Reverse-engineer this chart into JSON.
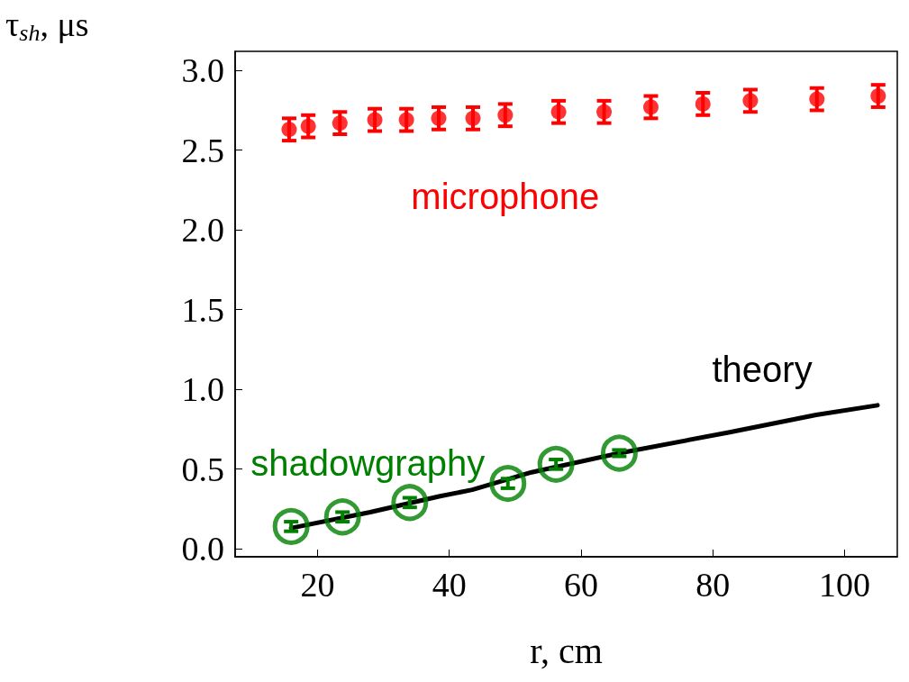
{
  "chart_data": {
    "type": "scatter",
    "xlabel": "r, cm",
    "ylabel": "τ$_{sh}$, μs",
    "xlim": [
      7.5,
      108
    ],
    "xticks": [
      20,
      40,
      60,
      80,
      100
    ],
    "ylim": [
      -0.05,
      3.12
    ],
    "yticks": [
      {
        "value": 0,
        "label": "0.0"
      },
      {
        "value": 0.5,
        "label": "0.5"
      },
      {
        "value": 1,
        "label": "1.0"
      },
      {
        "value": 1.5,
        "label": "1.5"
      },
      {
        "value": 2,
        "label": "2.0"
      },
      {
        "value": 2.5,
        "label": "2.5"
      },
      {
        "value": 3,
        "label": "3.0"
      }
    ],
    "grid": false,
    "legend": false,
    "marker": "circle",
    "series": [
      {
        "name": "microphone",
        "color": "#ff0000",
        "x": [
          15.7,
          18.6,
          23.4,
          28.7,
          33.5,
          38.4,
          43.6,
          48.5,
          56.6,
          63.5,
          70.6,
          78.5,
          85.7,
          95.8,
          105.1
        ],
        "values": [
          2.63,
          2.65,
          2.67,
          2.69,
          2.69,
          2.7,
          2.7,
          2.72,
          2.74,
          2.74,
          2.77,
          2.79,
          2.81,
          2.82,
          2.84
        ],
        "errors": [
          0.07,
          0.07,
          0.07,
          0.07,
          0.07,
          0.07,
          0.07,
          0.07,
          0.07,
          0.07,
          0.07,
          0.07,
          0.07,
          0.07,
          0.07
        ]
      },
      {
        "name": "shadowgraphy",
        "color": "#008000",
        "x": [
          16.0,
          23.8,
          34.0,
          48.9,
          56.2,
          65.8
        ],
        "values": [
          0.14,
          0.2,
          0.29,
          0.41,
          0.53,
          0.6
        ],
        "errors": [
          0.03,
          0.03,
          0.03,
          0.03,
          0.03,
          0.02
        ]
      },
      {
        "name": "theory",
        "type": "line",
        "color": "#000000",
        "marker": "none",
        "x": [
          16.0,
          28.0,
          38.6,
          43.5,
          52.5,
          65.8,
          82.4,
          95.7,
          105.0
        ],
        "values": [
          0.13,
          0.23,
          0.33,
          0.37,
          0.48,
          0.6,
          0.73,
          0.84,
          0.9
        ]
      }
    ]
  }
}
